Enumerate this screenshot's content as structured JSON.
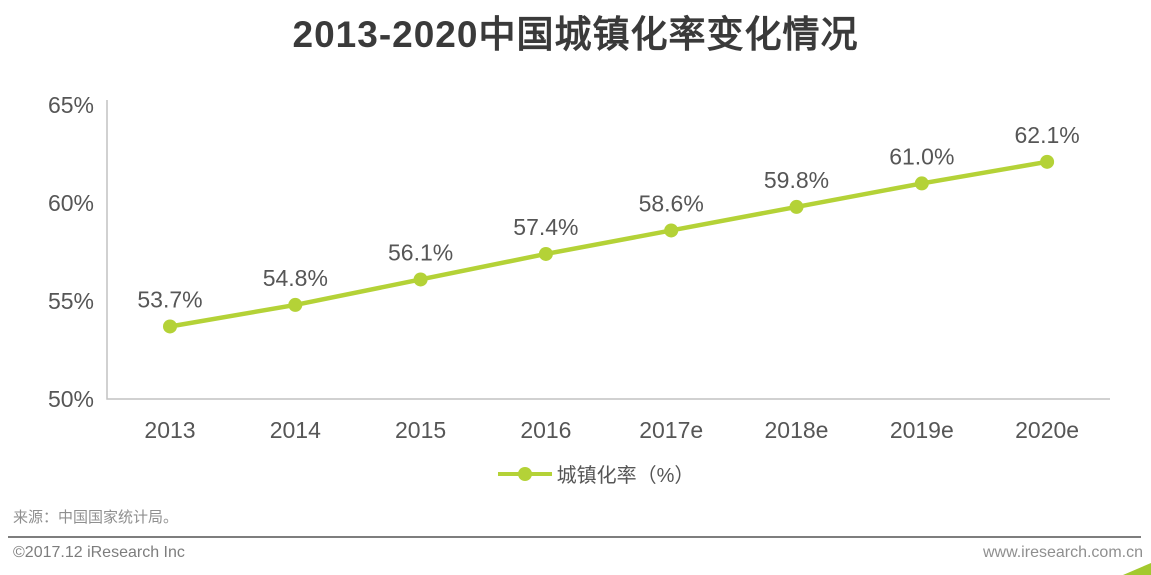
{
  "header": {
    "title": "2013-2020中国城镇化率变化情况"
  },
  "chart_data": {
    "type": "line",
    "title": "2013-2020中国城镇化率变化情况",
    "categories": [
      "2013",
      "2014",
      "2015",
      "2016",
      "2017e",
      "2018e",
      "2019e",
      "2020e"
    ],
    "series": [
      {
        "name": "城镇化率（%）",
        "values": [
          53.7,
          54.8,
          56.1,
          57.4,
          58.6,
          59.8,
          61.0,
          62.1
        ]
      }
    ],
    "data_labels": [
      "53.7%",
      "54.8%",
      "56.1%",
      "57.4%",
      "58.6%",
      "59.8%",
      "61.0%",
      "62.1%"
    ],
    "xlabel": "",
    "ylabel": "",
    "ylim": [
      50,
      65
    ],
    "ytick_values": [
      50,
      55,
      60,
      65
    ],
    "ytick_labels": [
      "50%",
      "55%",
      "60%",
      "65%"
    ],
    "grid": false,
    "legend_position": "bottom",
    "marker": "circle"
  },
  "legend": {
    "label": "城镇化率（%）"
  },
  "footer": {
    "source": "来源：中国国家统计局。",
    "copyright": "©2017.12 iResearch Inc",
    "website": "www.iresearch.com.cn"
  },
  "colors": {
    "accent_green": "#b4d237",
    "title_text": "#3a3a3a",
    "label_text": "#565656",
    "axis_line": "#c2c2c2"
  }
}
